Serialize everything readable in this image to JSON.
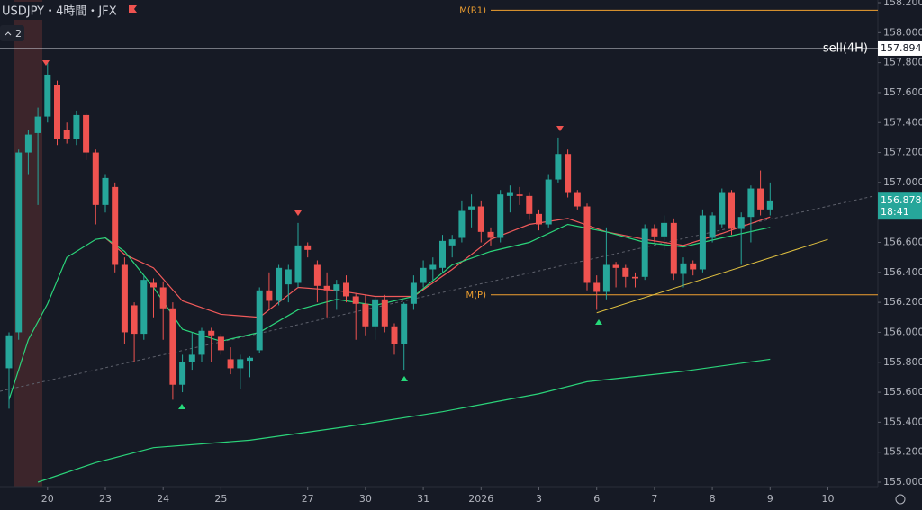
{
  "header": {
    "symbol": "USDJPY・4時間・JFX",
    "indicator_count": "2"
  },
  "chart_data": {
    "type": "candlestick",
    "up_color": "#26a69a",
    "down_color": "#ef5350",
    "open": [
      155.76,
      156.0,
      157.2,
      157.33,
      157.44,
      157.65,
      157.35,
      157.29,
      157.45,
      157.2,
      156.85,
      156.97,
      156.45,
      156.18,
      155.99,
      156.33,
      156.3,
      156.16,
      155.65,
      155.8,
      155.85,
      156.01,
      155.97,
      155.82,
      155.76,
      155.81,
      155.88,
      156.28,
      156.21,
      156.32,
      156.33,
      156.58,
      156.45,
      156.31,
      156.28,
      156.33,
      156.24,
      156.19,
      156.04,
      156.22,
      156.04,
      155.92,
      156.19,
      156.33,
      156.42,
      156.43,
      156.58,
      156.63,
      156.82,
      156.84,
      156.67,
      156.63,
      156.91,
      156.92,
      156.91,
      156.79,
      156.72,
      157.02,
      157.19,
      156.93,
      156.84,
      156.33,
      156.27,
      156.45,
      156.43,
      156.37,
      156.37,
      156.69,
      156.64,
      156.73,
      156.39,
      156.46,
      156.42,
      156.63,
      156.72,
      156.93,
      156.69,
      156.77,
      156.96,
      156.82
    ],
    "high": [
      156.0,
      157.22,
      157.35,
      157.5,
      157.8,
      157.68,
      157.4,
      157.48,
      157.46,
      157.22,
      157.05,
      157.0,
      156.5,
      156.2,
      156.38,
      156.36,
      156.34,
      156.2,
      155.85,
      156.0,
      156.03,
      156.03,
      155.99,
      155.9,
      155.85,
      155.84,
      156.3,
      156.4,
      156.45,
      156.45,
      156.73,
      156.6,
      156.48,
      156.4,
      156.35,
      156.38,
      156.26,
      156.25,
      156.24,
      156.25,
      156.06,
      156.2,
      156.38,
      156.48,
      156.5,
      156.65,
      156.65,
      156.88,
      156.92,
      156.88,
      156.7,
      156.95,
      156.98,
      156.97,
      156.93,
      156.82,
      157.05,
      157.3,
      157.22,
      156.95,
      156.86,
      156.38,
      156.7,
      156.47,
      156.45,
      156.4,
      156.72,
      156.72,
      156.78,
      156.76,
      156.5,
      156.48,
      156.82,
      156.8,
      156.96,
      156.95,
      156.8,
      156.98,
      157.08,
      157.0
    ],
    "low": [
      155.49,
      155.95,
      157.05,
      156.85,
      157.4,
      157.25,
      157.26,
      157.25,
      157.15,
      156.72,
      156.8,
      156.4,
      155.92,
      155.8,
      155.95,
      156.1,
      155.95,
      155.55,
      155.6,
      155.75,
      155.8,
      155.8,
      155.85,
      155.72,
      155.62,
      155.7,
      155.86,
      156.15,
      156.18,
      156.2,
      156.3,
      156.5,
      156.2,
      156.1,
      156.15,
      156.2,
      155.95,
      155.98,
      155.95,
      156.0,
      155.85,
      155.75,
      156.15,
      156.3,
      156.35,
      156.4,
      156.5,
      156.6,
      156.7,
      156.6,
      156.58,
      156.6,
      156.8,
      156.85,
      156.75,
      156.68,
      156.7,
      157.0,
      156.9,
      156.82,
      156.28,
      156.15,
      156.22,
      156.3,
      156.3,
      156.3,
      156.35,
      156.6,
      156.55,
      156.35,
      156.3,
      156.38,
      156.4,
      156.6,
      156.7,
      156.65,
      156.45,
      156.6,
      156.78,
      156.78
    ],
    "close": [
      155.98,
      157.2,
      157.32,
      157.44,
      157.72,
      157.29,
      157.29,
      157.45,
      157.2,
      156.85,
      157.03,
      156.45,
      156.0,
      155.99,
      156.35,
      156.3,
      156.16,
      155.65,
      155.8,
      155.85,
      156.01,
      155.98,
      155.88,
      155.76,
      155.82,
      155.83,
      156.28,
      156.21,
      156.43,
      156.42,
      156.58,
      156.55,
      156.31,
      156.28,
      156.32,
      156.24,
      156.19,
      156.04,
      156.22,
      156.04,
      155.92,
      156.19,
      156.33,
      156.43,
      156.45,
      156.61,
      156.62,
      156.81,
      156.84,
      156.67,
      156.63,
      156.92,
      156.93,
      156.91,
      156.79,
      156.72,
      157.02,
      157.19,
      156.93,
      156.84,
      156.33,
      156.27,
      156.45,
      156.43,
      156.37,
      156.36,
      156.69,
      156.64,
      156.73,
      156.39,
      156.46,
      156.42,
      156.78,
      156.78,
      156.93,
      156.69,
      156.77,
      156.96,
      156.82,
      156.88
    ],
    "overlays": [
      {
        "color": "#f05a5a",
        "x": [
          10,
          12,
          15,
          18,
          22,
          26,
          30,
          34,
          38,
          42,
          46,
          50,
          54,
          58,
          62,
          66,
          70,
          74,
          79
        ],
        "values": [
          156.63,
          156.52,
          156.43,
          156.21,
          156.12,
          156.1,
          156.3,
          156.28,
          156.24,
          156.24,
          156.42,
          156.62,
          156.72,
          156.76,
          156.67,
          156.62,
          156.58,
          156.66,
          156.77
        ]
      },
      {
        "color": "#2bd47a",
        "x": [
          0,
          2,
          4,
          6,
          9,
          10,
          12,
          15,
          18,
          22,
          26,
          30,
          34,
          38,
          42,
          46,
          50,
          54,
          58,
          62,
          66,
          70,
          74,
          79
        ],
        "values": [
          155.55,
          155.95,
          156.19,
          156.5,
          156.62,
          156.63,
          156.54,
          156.3,
          156.02,
          155.94,
          156.0,
          156.15,
          156.22,
          156.18,
          156.24,
          156.45,
          156.54,
          156.6,
          156.72,
          156.67,
          156.6,
          156.57,
          156.63,
          156.7
        ]
      },
      {
        "color": "#2bd47a",
        "x": [
          3,
          9,
          15,
          25,
          35,
          45,
          55,
          60,
          70,
          79
        ],
        "values": [
          155.0,
          155.13,
          155.23,
          155.28,
          155.37,
          155.47,
          155.59,
          155.67,
          155.74,
          155.82
        ]
      }
    ],
    "levels": [
      {
        "label": "M(R1)",
        "value": 158.15,
        "color": "#f0a030"
      },
      {
        "label": "M(P)",
        "value": 156.25,
        "color": "#f0a030"
      }
    ],
    "sell_line": {
      "label": "sell(4H)",
      "value": 157.894
    },
    "trendline": {
      "x": [
        61,
        85
      ],
      "values": [
        156.13,
        156.62
      ],
      "color": "#e0c040"
    },
    "last_price": {
      "value": 156.878,
      "time": "18:41"
    },
    "ylim": [
      155.0,
      158.2
    ],
    "yticks": [
      {
        "value": 155.0,
        "label": "155.000"
      },
      {
        "value": 155.2,
        "label": "155.200"
      },
      {
        "value": 155.4,
        "label": "155.400"
      },
      {
        "value": 155.6,
        "label": "155.600"
      },
      {
        "value": 155.8,
        "label": "155.800"
      },
      {
        "value": 156.0,
        "label": "156.000"
      },
      {
        "value": 156.2,
        "label": "156.200"
      },
      {
        "value": 156.4,
        "label": "156.400"
      },
      {
        "value": 156.6,
        "label": "156.600"
      },
      {
        "value": 156.8,
        "label": "156.800"
      },
      {
        "value": 157.0,
        "label": "157.000"
      },
      {
        "value": 157.2,
        "label": "157.200"
      },
      {
        "value": 157.4,
        "label": "157.400"
      },
      {
        "value": 157.6,
        "label": "157.600"
      },
      {
        "value": 157.8,
        "label": "157.800"
      },
      {
        "value": 158.0,
        "label": "158.000"
      },
      {
        "value": 158.2,
        "label": "158.200"
      }
    ],
    "xticks": [
      {
        "value": 4,
        "label": "20"
      },
      {
        "value": 10,
        "label": "23"
      },
      {
        "value": 16,
        "label": "24"
      },
      {
        "value": 22,
        "label": "25"
      },
      {
        "value": 31,
        "label": "27"
      },
      {
        "value": 37,
        "label": "30"
      },
      {
        "value": 43,
        "label": "31"
      },
      {
        "value": 49,
        "label": "2026"
      },
      {
        "value": 55,
        "label": "3"
      },
      {
        "value": 61,
        "label": "6"
      },
      {
        "value": 67,
        "label": "7"
      },
      {
        "value": 73,
        "label": "8"
      },
      {
        "value": 79,
        "label": "9"
      },
      {
        "value": 85,
        "label": "10"
      }
    ]
  }
}
